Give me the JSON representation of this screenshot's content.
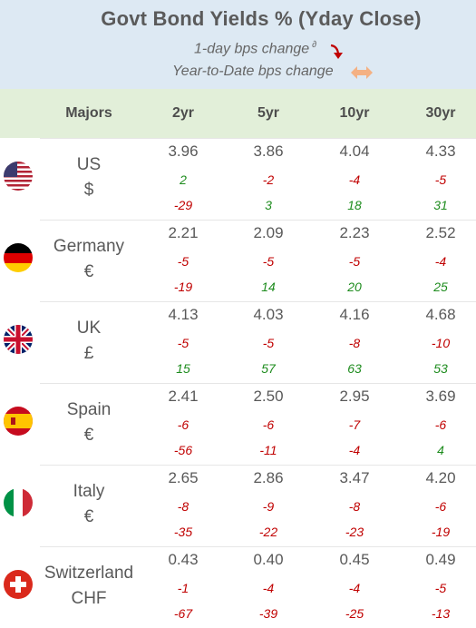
{
  "header": {
    "title": "Govt Bond Yields %  (Yday Close)",
    "legend_daily": "1-day bps change",
    "legend_daily_sup": "∂",
    "legend_ytd": "Year-to-Date bps change",
    "daily_arrow_color": "#c00000",
    "ytd_arrow_color": "#f4b183"
  },
  "colors": {
    "header_bg": "#dde9f3",
    "colheads_bg": "#e2efd9",
    "negative": "#c00000",
    "positive": "#1e8c1e"
  },
  "chart_data": {
    "type": "table",
    "columns": [
      "Majors",
      "2yr",
      "5yr",
      "10yr",
      "30yr"
    ],
    "rows": [
      {
        "country": "US",
        "currency": "$",
        "flag": "us-flag-icon",
        "yields": [
          "3.96",
          "3.86",
          "4.04",
          "4.33"
        ],
        "daily": [
          "2",
          "-2",
          "-4",
          "-5"
        ],
        "ytd": [
          "-29",
          "3",
          "18",
          "31"
        ]
      },
      {
        "country": "Germany",
        "currency": "€",
        "flag": "germany-flag-icon",
        "yields": [
          "2.21",
          "2.09",
          "2.23",
          "2.52"
        ],
        "daily": [
          "-5",
          "-5",
          "-5",
          "-4"
        ],
        "ytd": [
          "-19",
          "14",
          "20",
          "25"
        ]
      },
      {
        "country": "UK",
        "currency": "£",
        "flag": "uk-flag-icon",
        "yields": [
          "4.13",
          "4.03",
          "4.16",
          "4.68"
        ],
        "daily": [
          "-5",
          "-5",
          "-8",
          "-10"
        ],
        "ytd": [
          "15",
          "57",
          "63",
          "53"
        ]
      },
      {
        "country": "Spain",
        "currency": "€",
        "flag": "spain-flag-icon",
        "yields": [
          "2.41",
          "2.50",
          "2.95",
          "3.69"
        ],
        "daily": [
          "-6",
          "-6",
          "-7",
          "-6"
        ],
        "ytd": [
          "-56",
          "-11",
          "-4",
          "4"
        ]
      },
      {
        "country": "Italy",
        "currency": "€",
        "flag": "italy-flag-icon",
        "yields": [
          "2.65",
          "2.86",
          "3.47",
          "4.20"
        ],
        "daily": [
          "-8",
          "-9",
          "-8",
          "-6"
        ],
        "ytd": [
          "-35",
          "-22",
          "-23",
          "-19"
        ]
      },
      {
        "country": "Switzerland",
        "currency": "CHF",
        "flag": "switzerland-flag-icon",
        "yields": [
          "0.43",
          "0.40",
          "0.45",
          "0.49"
        ],
        "daily": [
          "-1",
          "-4",
          "-4",
          "-5"
        ],
        "ytd": [
          "-67",
          "-39",
          "-25",
          "-13"
        ]
      }
    ]
  }
}
